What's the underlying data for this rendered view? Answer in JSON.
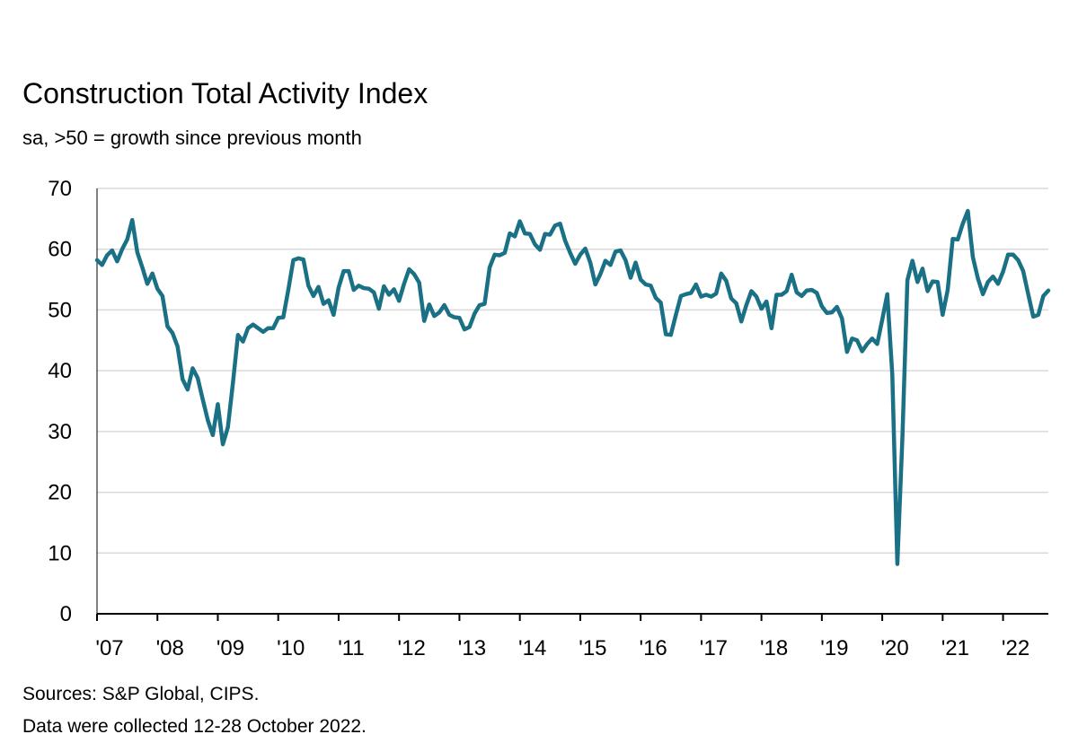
{
  "title": "Construction Total Activity Index",
  "subtitle": "sa, >50 = growth since previous month",
  "sources": "Sources: S&P Global, CIPS.",
  "collection_note": "Data were collected 12-28 October 2022.",
  "colors": {
    "line": "#1a7085",
    "grid": "#d9d9d9",
    "axis": "#000000"
  },
  "chart_data": {
    "type": "line",
    "title": "Construction Total Activity Index",
    "subtitle": "sa, >50 = growth since previous month",
    "xlabel": "",
    "ylabel": "",
    "ylim": [
      0,
      70
    ],
    "yticks": [
      0,
      10,
      20,
      30,
      40,
      50,
      60,
      70
    ],
    "xticks": [
      "'07",
      "'08",
      "'09",
      "'10",
      "'11",
      "'12",
      "'13",
      "'14",
      "'15",
      "'16",
      "'17",
      "'18",
      "'19",
      "'20",
      "'21",
      "'22"
    ],
    "x_start": "2007-01",
    "x_end": "2022-10",
    "grid": true,
    "series": [
      {
        "values": [
          58.2,
          57.4,
          59.0,
          59.8,
          58.0,
          60.0,
          61.6,
          64.8,
          59.5,
          57.0,
          54.3,
          56.0,
          53.5,
          52.3,
          47.3,
          46.2,
          44.0,
          38.6,
          36.9,
          40.4,
          38.8,
          35.3,
          31.9,
          29.4,
          34.5,
          27.9,
          30.7,
          38.0,
          45.9,
          44.8,
          47.0,
          47.6,
          47.0,
          46.4,
          47.0,
          47.0,
          48.7,
          48.8,
          53.3,
          58.2,
          58.5,
          58.3,
          54.0,
          52.3,
          53.8,
          51.0,
          51.6,
          49.2,
          53.7,
          56.4,
          56.4,
          53.3,
          54.0,
          53.6,
          53.5,
          52.9,
          50.2,
          53.9,
          52.5,
          53.4,
          51.5,
          54.3,
          56.7,
          55.9,
          54.5,
          48.2,
          50.9,
          49.0,
          49.6,
          50.8,
          49.2,
          48.8,
          48.7,
          46.8,
          47.2,
          49.4,
          50.8,
          51.0,
          57.0,
          59.1,
          59.0,
          59.4,
          62.6,
          62.1,
          64.6,
          62.6,
          62.5,
          60.8,
          59.9,
          62.5,
          62.4,
          63.9,
          64.2,
          61.4,
          59.4,
          57.6,
          59.1,
          60.1,
          57.8,
          54.2,
          55.9,
          58.1,
          57.4,
          59.6,
          59.8,
          58.2,
          55.3,
          57.8,
          55.0,
          54.2,
          54.0,
          52.0,
          51.2,
          46.0,
          45.9,
          49.2,
          52.3,
          52.6,
          52.8,
          54.2,
          52.2,
          52.5,
          52.2,
          52.7,
          56.0,
          54.8,
          51.9,
          51.1,
          48.1,
          50.8,
          53.1,
          52.2,
          50.2,
          51.4,
          47.0,
          52.5,
          52.5,
          53.1,
          55.8,
          52.9,
          52.3,
          53.2,
          53.3,
          52.8,
          50.6,
          49.5,
          49.6,
          50.5,
          48.6,
          43.1,
          45.3,
          45.0,
          43.2,
          44.4,
          45.3,
          44.4,
          48.4,
          52.6,
          39.3,
          8.2,
          28.9,
          54.9,
          58.1,
          54.6,
          56.8,
          53.1,
          54.7,
          54.6,
          49.2,
          53.3,
          61.7,
          61.6,
          64.2,
          66.3,
          58.7,
          55.2,
          52.6,
          54.6,
          55.5,
          54.3,
          56.3,
          59.1,
          59.1,
          58.2,
          56.4,
          52.6,
          48.9,
          49.2,
          52.3,
          53.2
        ]
      }
    ]
  }
}
